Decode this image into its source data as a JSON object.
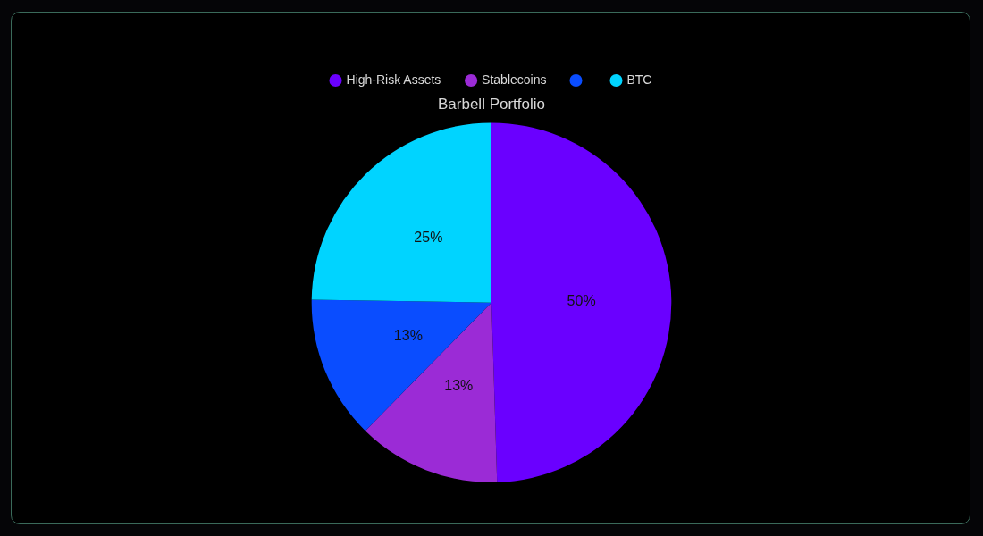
{
  "chart_data": {
    "type": "pie",
    "title": "Barbell Portfolio",
    "categories": [
      "High-Risk Assets",
      "Stablecoins",
      null,
      "BTC"
    ],
    "values": [
      50,
      13,
      13,
      25
    ],
    "value_labels": [
      "50%",
      "13%",
      "13%",
      "25%"
    ],
    "colors": [
      "#6a00ff",
      "#9b2bd6",
      "#0a4dff",
      "#00d4ff"
    ],
    "legend": "top"
  }
}
